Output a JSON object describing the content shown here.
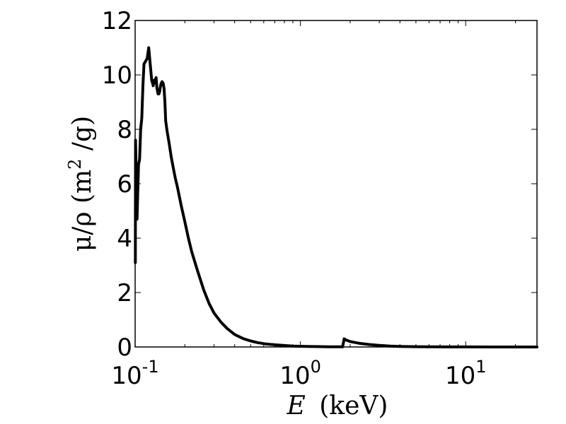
{
  "chart_data": {
    "type": "line",
    "x_scale": "log",
    "xlim": [
      0.1,
      27
    ],
    "ylim": [
      0,
      12
    ],
    "xlabel": {
      "var": "E",
      "unit": "(keV)"
    },
    "ylabel": {
      "prefix": "μ/ρ (m",
      "exp": "2",
      "suffix": " /g)"
    },
    "y_ticks": [
      0,
      2,
      4,
      6,
      8,
      10,
      12
    ],
    "x_ticks": [
      {
        "value": 0.1,
        "base": "10",
        "exp": "-1"
      },
      {
        "value": 1,
        "base": "10",
        "exp": "0"
      },
      {
        "value": 10,
        "base": "10",
        "exp": "1"
      }
    ],
    "grid": false,
    "line_color": "#000000",
    "series": [
      {
        "x": [
          0.1003,
          0.1006,
          0.1012,
          0.1018,
          0.1027,
          0.1036,
          0.1048,
          0.1064,
          0.108,
          0.1097,
          0.1114,
          0.1131,
          0.1156,
          0.1182,
          0.1208,
          0.1234,
          0.126,
          0.1276,
          0.1287,
          0.1298,
          0.1309,
          0.1321,
          0.1339,
          0.1356,
          0.1376,
          0.1393,
          0.1409,
          0.1415,
          0.1426,
          0.1439,
          0.1456,
          0.1476,
          0.1497,
          0.1514,
          0.1531,
          0.1564,
          0.1605,
          0.1651,
          0.17,
          0.175,
          0.18,
          0.19,
          0.2,
          0.21,
          0.22,
          0.24,
          0.26,
          0.28,
          0.3,
          0.33,
          0.36,
          0.4,
          0.45,
          0.5,
          0.55,
          0.62,
          0.7,
          0.8,
          0.9,
          1.0,
          1.1,
          1.3,
          1.5,
          1.7,
          1.8,
          1.84,
          1.9,
          2.0,
          2.3,
          2.6,
          3.0,
          3.5,
          4.0,
          5.0,
          6.0,
          8.0,
          10.0,
          15.0,
          20.0,
          27.0
        ],
        "y": [
          3.1,
          7.6,
          6.7,
          4.8,
          4.7,
          5.6,
          6.7,
          6.9,
          8.0,
          8.4,
          9.6,
          10.4,
          10.5,
          10.6,
          11.0,
          10.4,
          9.8,
          9.7,
          9.6,
          9.8,
          9.7,
          9.8,
          9.9,
          9.5,
          9.3,
          9.3,
          9.4,
          9.5,
          9.6,
          9.7,
          9.75,
          9.7,
          9.5,
          9.0,
          8.3,
          7.9,
          7.5,
          7.0,
          6.6,
          6.2,
          5.9,
          5.2,
          4.6,
          4.0,
          3.5,
          2.75,
          2.1,
          1.6,
          1.25,
          0.92,
          0.68,
          0.46,
          0.31,
          0.22,
          0.16,
          0.11,
          0.08,
          0.055,
          0.035,
          0.025,
          0.018,
          0.012,
          0.008,
          0.006,
          0.005,
          0.3,
          0.25,
          0.2,
          0.13,
          0.09,
          0.06,
          0.035,
          0.022,
          0.011,
          0.007,
          0.003,
          0.002,
          0.001,
          0.0005,
          0.0002
        ]
      }
    ]
  }
}
